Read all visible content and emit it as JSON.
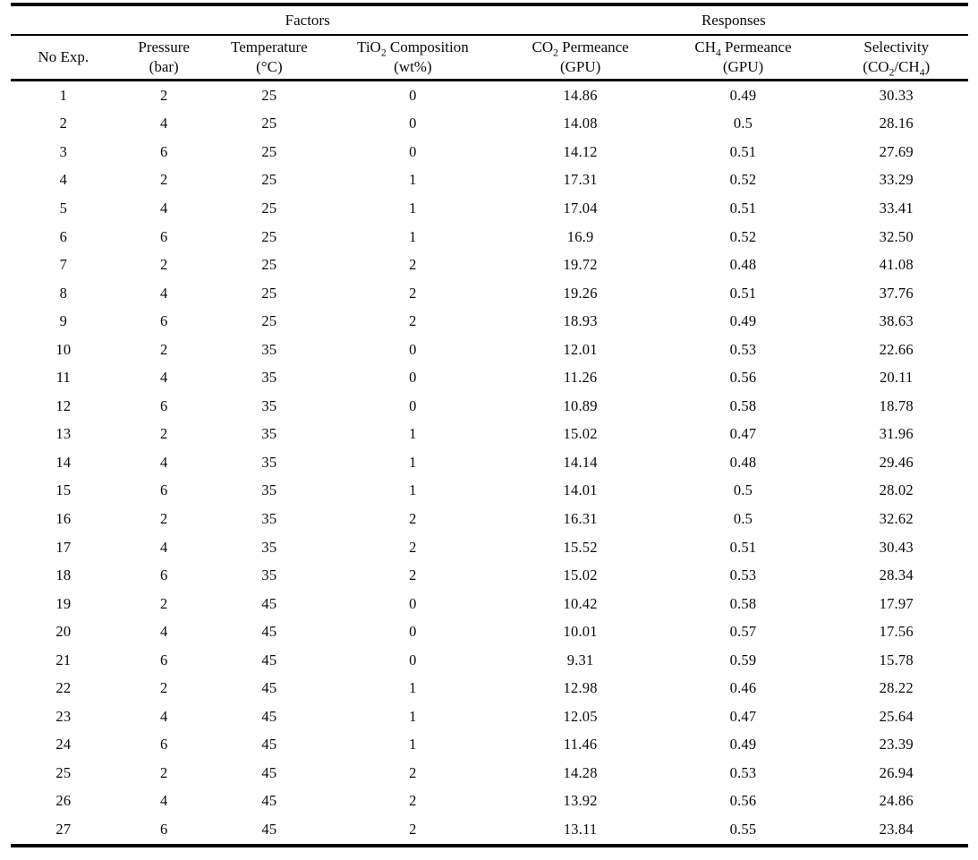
{
  "page": {
    "background": "#ffffff",
    "text_color": "#0a0a0a",
    "rule_color": "#000000"
  },
  "table": {
    "group_header": {
      "corner_label": "",
      "factors_label": "Factors",
      "responses_label": "Responses"
    },
    "columns": [
      {
        "name": "no-exp",
        "line1": [
          [
            "t",
            "No Exp."
          ]
        ],
        "line2": []
      },
      {
        "name": "pressure",
        "line1": [
          [
            "t",
            "Pressure"
          ]
        ],
        "line2": [
          [
            "t",
            "(bar)"
          ]
        ]
      },
      {
        "name": "temperature",
        "line1": [
          [
            "t",
            "Temperature"
          ]
        ],
        "line2": [
          [
            "t",
            "(°C)"
          ]
        ]
      },
      {
        "name": "tio2-composition",
        "line1": [
          [
            "t",
            "TiO"
          ],
          [
            "s",
            "2"
          ],
          [
            "t",
            " Composition"
          ]
        ],
        "line2": [
          [
            "t",
            "(wt%)"
          ]
        ]
      },
      {
        "name": "co2-permeance",
        "line1": [
          [
            "t",
            "CO"
          ],
          [
            "s",
            "2"
          ],
          [
            "t",
            " Permeance"
          ]
        ],
        "line2": [
          [
            "t",
            "(GPU)"
          ]
        ]
      },
      {
        "name": "ch4-permeance",
        "line1": [
          [
            "t",
            "CH"
          ],
          [
            "s",
            "4"
          ],
          [
            "t",
            " Permeance"
          ]
        ],
        "line2": [
          [
            "t",
            "(GPU)"
          ]
        ]
      },
      {
        "name": "selectivity",
        "line1": [
          [
            "t",
            "Selectivity"
          ]
        ],
        "line2": [
          [
            "t",
            "(CO"
          ],
          [
            "s",
            "2"
          ],
          [
            "t",
            "/CH"
          ],
          [
            "s",
            "4"
          ],
          [
            "t",
            ")"
          ]
        ]
      }
    ],
    "rows": [
      [
        "1",
        "2",
        "25",
        "0",
        "14.86",
        "0.49",
        "30.33"
      ],
      [
        "2",
        "4",
        "25",
        "0",
        "14.08",
        "0.5",
        "28.16"
      ],
      [
        "3",
        "6",
        "25",
        "0",
        "14.12",
        "0.51",
        "27.69"
      ],
      [
        "4",
        "2",
        "25",
        "1",
        "17.31",
        "0.52",
        "33.29"
      ],
      [
        "5",
        "4",
        "25",
        "1",
        "17.04",
        "0.51",
        "33.41"
      ],
      [
        "6",
        "6",
        "25",
        "1",
        "16.9",
        "0.52",
        "32.50"
      ],
      [
        "7",
        "2",
        "25",
        "2",
        "19.72",
        "0.48",
        "41.08"
      ],
      [
        "8",
        "4",
        "25",
        "2",
        "19.26",
        "0.51",
        "37.76"
      ],
      [
        "9",
        "6",
        "25",
        "2",
        "18.93",
        "0.49",
        "38.63"
      ],
      [
        "10",
        "2",
        "35",
        "0",
        "12.01",
        "0.53",
        "22.66"
      ],
      [
        "11",
        "4",
        "35",
        "0",
        "11.26",
        "0.56",
        "20.11"
      ],
      [
        "12",
        "6",
        "35",
        "0",
        "10.89",
        "0.58",
        "18.78"
      ],
      [
        "13",
        "2",
        "35",
        "1",
        "15.02",
        "0.47",
        "31.96"
      ],
      [
        "14",
        "4",
        "35",
        "1",
        "14.14",
        "0.48",
        "29.46"
      ],
      [
        "15",
        "6",
        "35",
        "1",
        "14.01",
        "0.5",
        "28.02"
      ],
      [
        "16",
        "2",
        "35",
        "2",
        "16.31",
        "0.5",
        "32.62"
      ],
      [
        "17",
        "4",
        "35",
        "2",
        "15.52",
        "0.51",
        "30.43"
      ],
      [
        "18",
        "6",
        "35",
        "2",
        "15.02",
        "0.53",
        "28.34"
      ],
      [
        "19",
        "2",
        "45",
        "0",
        "10.42",
        "0.58",
        "17.97"
      ],
      [
        "20",
        "4",
        "45",
        "0",
        "10.01",
        "0.57",
        "17.56"
      ],
      [
        "21",
        "6",
        "45",
        "0",
        "9.31",
        "0.59",
        "15.78"
      ],
      [
        "22",
        "2",
        "45",
        "1",
        "12.98",
        "0.46",
        "28.22"
      ],
      [
        "23",
        "4",
        "45",
        "1",
        "12.05",
        "0.47",
        "25.64"
      ],
      [
        "24",
        "6",
        "45",
        "1",
        "11.46",
        "0.49",
        "23.39"
      ],
      [
        "25",
        "2",
        "45",
        "2",
        "14.28",
        "0.53",
        "26.94"
      ],
      [
        "26",
        "4",
        "45",
        "2",
        "13.92",
        "0.56",
        "24.86"
      ],
      [
        "27",
        "6",
        "45",
        "2",
        "13.11",
        "0.55",
        "23.84"
      ]
    ]
  }
}
